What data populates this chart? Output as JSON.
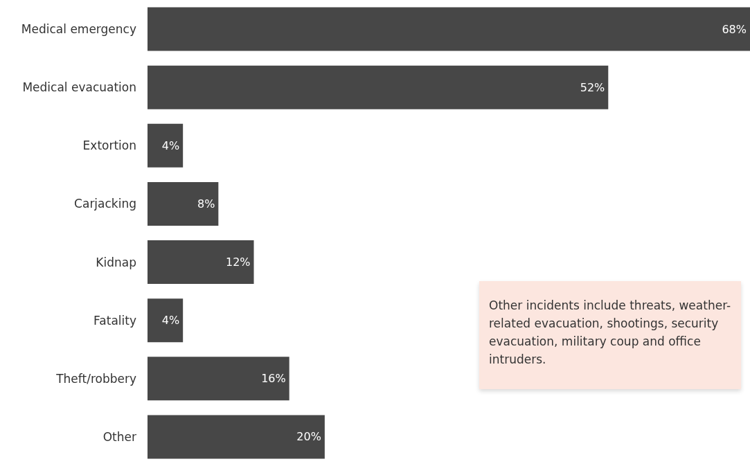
{
  "chart_data": {
    "type": "bar",
    "orientation": "horizontal",
    "categories": [
      "Medical emergency",
      "Medical evacuation",
      "Extortion",
      "Carjacking",
      "Kidnap",
      "Fatality",
      "Theft/robbery",
      "Other"
    ],
    "series": [
      {
        "color": "#474747",
        "values": [
          68,
          52,
          4,
          8,
          12,
          4,
          16,
          20
        ],
        "value_labels": [
          "68%",
          "52%",
          "4%",
          "8%",
          "12%",
          "4%",
          "16%",
          "20%"
        ]
      }
    ],
    "annotations": [
      "Other incidents include threats, weather-related evacuation, shootings, security evacuation, military coup and office intruders."
    ],
    "grid": false
  }
}
